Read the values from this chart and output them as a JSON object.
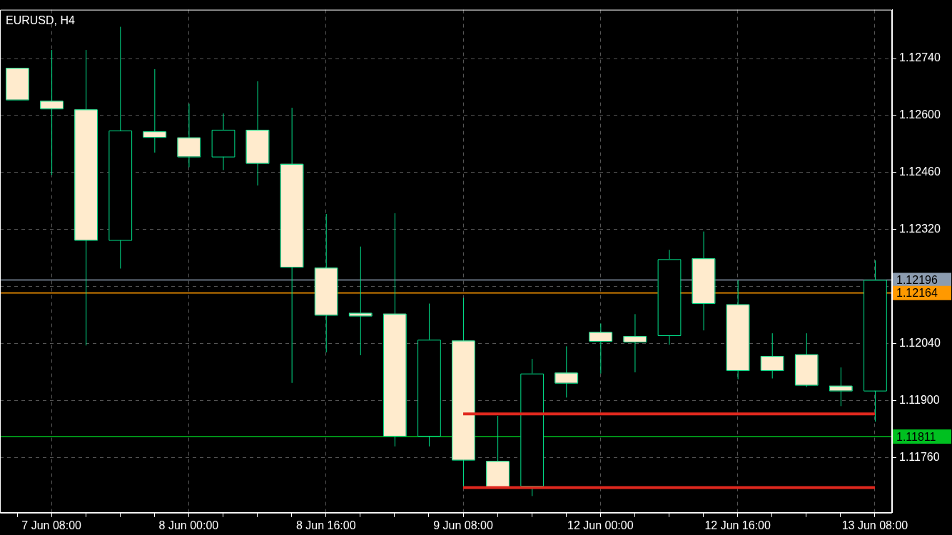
{
  "chart_data": {
    "type": "candlestick",
    "title": "EURUSD, H4",
    "categories": [
      null,
      "7 Jun 08:00",
      null,
      null,
      null,
      "8 Jun 00:00",
      null,
      null,
      null,
      "8 Jun 16:00",
      null,
      null,
      null,
      "9 Jun 08:00",
      null,
      null,
      null,
      "12 Jun 00:00",
      null,
      null,
      null,
      "12 Jun 16:00",
      null,
      null,
      null,
      "13 Jun 08:00"
    ],
    "ohlc": [
      [
        1.12717,
        1.12717,
        1.12639,
        1.12639
      ],
      [
        1.12636,
        1.12761,
        1.12454,
        1.12617
      ],
      [
        1.12615,
        1.12761,
        1.12035,
        1.12294
      ],
      [
        1.12294,
        1.12818,
        1.12224,
        1.12563
      ],
      [
        1.12561,
        1.12714,
        1.12509,
        1.12547
      ],
      [
        1.12546,
        1.12629,
        1.12473,
        1.12499
      ],
      [
        1.12499,
        1.12605,
        1.12466,
        1.12565
      ],
      [
        1.12565,
        1.12684,
        1.12428,
        1.12483
      ],
      [
        1.12481,
        1.12619,
        1.11943,
        1.12228
      ],
      [
        1.12226,
        1.12358,
        1.12018,
        1.1211
      ],
      [
        1.12115,
        1.12278,
        1.12011,
        1.12108
      ],
      [
        1.12113,
        1.1236,
        1.11787,
        1.11813
      ],
      [
        1.11813,
        1.12138,
        1.11787,
        1.12049
      ],
      [
        1.12047,
        1.12152,
        1.11686,
        1.11754
      ],
      [
        1.11751,
        1.11862,
        1.11688,
        1.11688
      ],
      [
        1.1169,
        1.12002,
        1.11665,
        1.11966
      ],
      [
        1.11968,
        1.12033,
        1.11907,
        1.11943
      ],
      [
        1.12068,
        1.12089,
        1.11966,
        1.12046
      ],
      [
        1.12058,
        1.12112,
        1.11969,
        1.12044
      ],
      [
        1.1206,
        1.1227,
        1.12037,
        1.12247
      ],
      [
        1.12249,
        1.12315,
        1.12072,
        1.12139
      ],
      [
        1.12136,
        1.12195,
        1.11952,
        1.11974
      ],
      [
        1.12009,
        1.12065,
        1.11954,
        1.11974
      ],
      [
        1.12013,
        1.12065,
        1.11933,
        1.11938
      ],
      [
        1.11936,
        1.11981,
        1.11886,
        1.11924
      ],
      [
        1.11924,
        1.12244,
        1.11848,
        1.12196
      ]
    ],
    "color": "#00e08a",
    "colors": [
      "#ffebcd",
      "#ffebcd",
      "#ffebcd",
      "#000000",
      "#ffebcd",
      "#ffebcd",
      "#000000",
      "#ffebcd",
      "#ffebcd",
      "#ffebcd",
      "#ffebcd",
      "#ffebcd",
      "#000000",
      "#ffebcd",
      "#ffebcd",
      "#000000",
      "#ffebcd",
      "#ffebcd",
      "#ffebcd",
      "#000000",
      "#ffebcd",
      "#ffebcd",
      "#ffebcd",
      "#ffebcd",
      "#ffebcd",
      "#000000"
    ],
    "series": [
      {
        "type": "line",
        "color": "#e0281e",
        "values": [
          null,
          null,
          null,
          null,
          null,
          null,
          null,
          null,
          null,
          null,
          null,
          null,
          null,
          1.11867,
          1.11867,
          1.11867,
          1.11867,
          1.11867,
          1.11867,
          1.11867,
          1.11867,
          1.11867,
          1.11867,
          1.11867,
          1.11867,
          1.11867
        ]
      },
      {
        "type": "line",
        "color": "#e0281e",
        "values": [
          null,
          null,
          null,
          null,
          null,
          null,
          null,
          null,
          null,
          null,
          null,
          null,
          null,
          1.11686,
          1.11686,
          1.11686,
          1.11686,
          1.11686,
          1.11686,
          1.11686,
          1.11686,
          1.11686,
          1.11686,
          1.11686,
          1.11686,
          1.11686
        ]
      }
    ],
    "ref_lines": [
      {
        "axis": "y",
        "value": 1.12196,
        "label": "1.12196",
        "color": "#8c9cb0"
      },
      {
        "axis": "y",
        "value": 1.12164,
        "label": "1.12164",
        "color": "#ff9900"
      },
      {
        "axis": "y",
        "value": 1.11811,
        "label": "1.11811",
        "color": "#00c020"
      }
    ],
    "ylim": [
      1.11624,
      1.1286
    ],
    "yticks": [
      {
        "value": 1.1176,
        "label": "1.11760"
      },
      {
        "value": 1.119,
        "label": "1.11900"
      },
      {
        "value": 1.1204,
        "label": "1.12040"
      },
      {
        "value": 1.1218,
        "label": null
      },
      {
        "value": 1.1232,
        "label": "1.12320"
      },
      {
        "value": 1.1246,
        "label": "1.12460"
      },
      {
        "value": 1.126,
        "label": "1.12600"
      },
      {
        "value": 1.1274,
        "label": "1.12740"
      }
    ],
    "grid": true,
    "legend": false
  }
}
